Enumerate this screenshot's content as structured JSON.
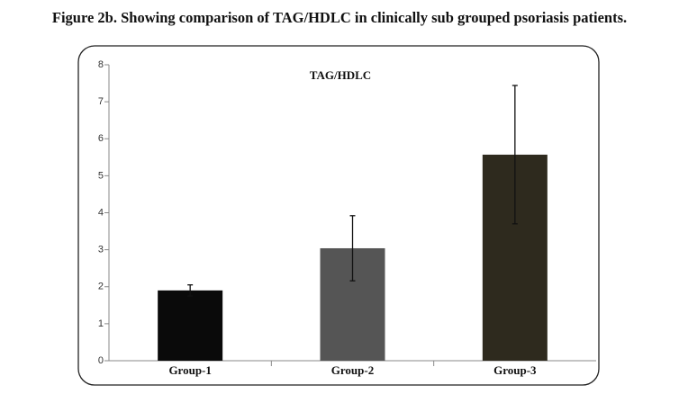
{
  "chart_data": {
    "type": "bar",
    "title": "Figure 2b. Showing comparison of TAG/HDLC in clinically sub grouped psoriasis patients.",
    "subtitle": "TAG/HDLC",
    "categories": [
      "Group-1",
      "Group-2",
      "Group-3"
    ],
    "values": [
      1.9,
      3.04,
      5.57
    ],
    "errors": [
      0.15,
      0.88,
      1.87
    ],
    "colors": [
      "#0a0a0a",
      "#555555",
      "#2e2a1e"
    ],
    "ylim": [
      0,
      8
    ],
    "yticks": [
      0,
      1,
      2,
      3,
      4,
      5,
      6,
      7,
      8
    ]
  }
}
